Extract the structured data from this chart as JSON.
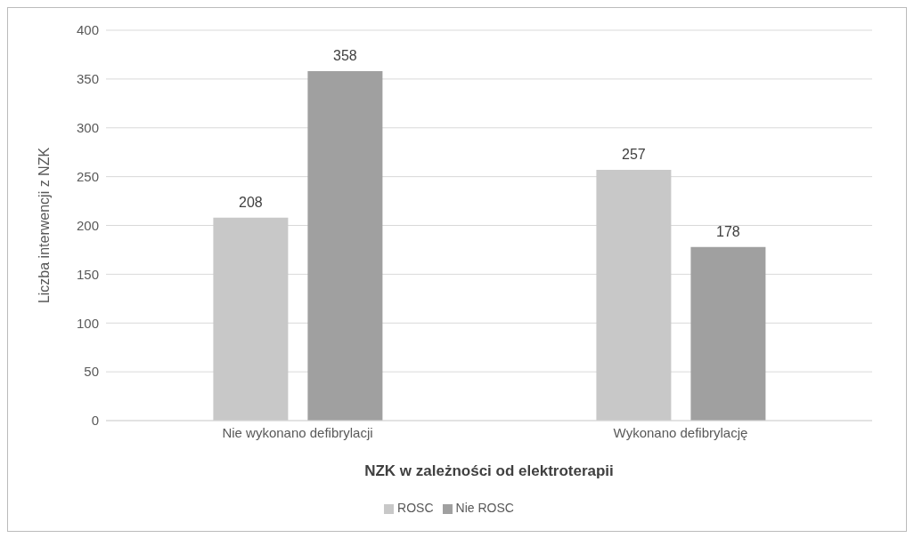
{
  "chart_data": {
    "type": "bar",
    "xlabel": "NZK w zależności od elektroterapii",
    "ylabel": "Liczba interwencji z NZK",
    "categories": [
      "Nie wykonano defibrylacji",
      "Wykonano defibrylację"
    ],
    "series": [
      {
        "name": "ROSC",
        "color": "#c8c8c8",
        "values": [
          208,
          257
        ]
      },
      {
        "name": "Nie ROSC",
        "color": "#a0a0a0",
        "values": [
          358,
          178
        ]
      }
    ],
    "ylim": [
      0,
      400
    ],
    "yticks": [
      0,
      50,
      100,
      150,
      200,
      250,
      300,
      350,
      400
    ],
    "grid": "y",
    "legend": "bottom",
    "data_labels": true
  }
}
